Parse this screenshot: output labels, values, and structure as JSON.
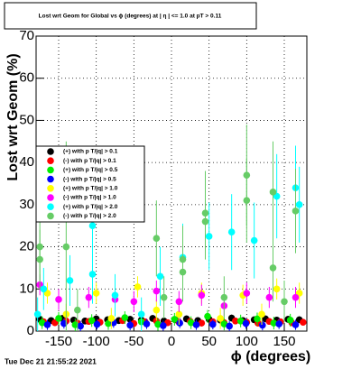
{
  "chart_data": {
    "type": "scatter",
    "title": "Lost wrt Geom for Global vs ϕ (degrees) at | η | <= 1.0 at pT > 0.11",
    "x_label": "ϕ (degrees)",
    "y_label": "Lost wrt Geom (%)",
    "timestamp": "Tue Dec 21 21:55:22 2021",
    "xlim": [
      -180,
      180
    ],
    "ylim": [
      0,
      70
    ],
    "xticks": [
      -150,
      -100,
      -50,
      0,
      50,
      100,
      150
    ],
    "yticks": [
      0,
      10,
      20,
      30,
      40,
      50,
      60,
      70
    ],
    "grid": true,
    "legend": "left",
    "series": [
      {
        "name": "(+) with p T/|q| > 0.1",
        "color": "#000000",
        "x": [
          -175,
          -160,
          -145,
          -130,
          -115,
          -100,
          -85,
          -70,
          -55,
          -40,
          -25,
          -10,
          5,
          20,
          35,
          50,
          65,
          80,
          95,
          110,
          125,
          140,
          155,
          170
        ],
        "values": [
          2.8,
          2.5,
          3.0,
          2.6,
          2.4,
          2.9,
          2.7,
          2.5,
          2.8,
          2.6,
          3.0,
          2.4,
          2.7,
          2.9,
          2.5,
          2.8,
          2.6,
          3.1,
          2.5,
          2.7,
          2.9,
          2.6,
          2.8,
          2.7
        ],
        "errors": [
          0.8,
          0.8,
          0.8,
          0.8,
          0.8,
          0.8,
          0.8,
          0.8,
          0.8,
          0.8,
          0.8,
          0.8,
          0.8,
          0.8,
          0.8,
          0.8,
          0.8,
          0.8,
          0.8,
          0.8,
          0.8,
          0.8,
          0.8,
          0.8
        ]
      },
      {
        "name": "(-) with p T/|q| > 0.1",
        "color": "#ff0000",
        "x": [
          -170,
          -155,
          -140,
          -125,
          -110,
          -95,
          -80,
          -65,
          -50,
          -35,
          -20,
          -5,
          10,
          25,
          40,
          55,
          70,
          85,
          100,
          115,
          130,
          145,
          160,
          175
        ],
        "values": [
          2.2,
          2.0,
          2.4,
          1.9,
          2.3,
          2.1,
          2.0,
          2.5,
          1.8,
          2.2,
          2.4,
          2.0,
          2.1,
          2.3,
          1.9,
          2.2,
          2.0,
          2.4,
          2.1,
          1.9,
          2.3,
          2.2,
          2.0,
          2.1
        ],
        "errors": [
          0.8,
          0.8,
          0.8,
          0.8,
          0.8,
          0.8,
          0.8,
          0.8,
          0.8,
          0.8,
          0.8,
          0.8,
          0.8,
          0.8,
          0.8,
          0.8,
          0.8,
          0.8,
          0.8,
          0.8,
          0.8,
          0.8,
          0.8,
          0.8
        ]
      },
      {
        "name": "(+) with p T/|q| > 0.5",
        "color": "#00ee00",
        "x": [
          -172,
          -150,
          -128,
          -106,
          -84,
          -62,
          -40,
          -18,
          4,
          26,
          48,
          70,
          92,
          114,
          136,
          158
        ],
        "values": [
          2.0,
          3.0,
          1.5,
          2.5,
          1.8,
          3.2,
          2.2,
          1.6,
          2.8,
          2.0,
          3.5,
          1.7,
          2.4,
          2.9,
          1.9,
          2.6
        ],
        "errors": [
          1.5,
          1.5,
          1.5,
          1.5,
          1.5,
          1.5,
          1.5,
          1.5,
          1.5,
          1.5,
          1.5,
          1.5,
          1.5,
          1.5,
          1.5,
          1.5
        ]
      },
      {
        "name": "(-) with p T/|q| > 0.5",
        "color": "#0000ff",
        "x": [
          -165,
          -143,
          -121,
          -99,
          -77,
          -55,
          -33,
          -11,
          11,
          33,
          55,
          77,
          99,
          121,
          143,
          165
        ],
        "values": [
          1.5,
          1.8,
          1.2,
          1.6,
          2.0,
          1.4,
          1.7,
          1.3,
          1.9,
          1.5,
          1.6,
          1.2,
          1.8,
          1.4,
          1.7,
          1.5
        ],
        "errors": [
          1.2,
          1.2,
          1.2,
          1.2,
          1.2,
          1.2,
          1.2,
          1.2,
          1.2,
          1.2,
          1.2,
          1.2,
          1.2,
          1.2,
          1.2,
          1.2
        ]
      },
      {
        "name": "(+) with p T/|q| > 1.0",
        "color": "#ffff00",
        "x": [
          -165,
          -140,
          -100,
          -80,
          -45,
          -20,
          10,
          40,
          65,
          95,
          120,
          140,
          170
        ],
        "values": [
          9,
          4,
          9,
          3,
          10.5,
          5,
          4,
          9,
          3,
          8.5,
          4,
          10,
          9
        ],
        "errors": [
          2.5,
          2.5,
          2.5,
          2.5,
          2.5,
          2.5,
          2.5,
          2.5,
          2.5,
          2.5,
          2.5,
          2.5,
          2.5
        ]
      },
      {
        "name": "(-) with p T/|q| > 1.0",
        "color": "#ff00ff",
        "x": [
          -175,
          -150,
          -110,
          -75,
          -50,
          -20,
          10,
          40,
          70,
          100,
          130,
          165
        ],
        "values": [
          11,
          7.5,
          8,
          7.5,
          7,
          9.5,
          7,
          8.5,
          6,
          9,
          8,
          8
        ],
        "errors": [
          2.5,
          2.5,
          2.5,
          2.5,
          2.5,
          2.5,
          2.5,
          2.5,
          2.5,
          2.5,
          2.5,
          2.5
        ]
      },
      {
        "name": "(+) with p T/|q| > 2.0",
        "color": "#00ffff",
        "x": [
          -178,
          -170,
          -135,
          -105,
          -105,
          -75,
          -40,
          -15,
          15,
          50,
          80,
          110,
          140,
          165,
          170
        ],
        "values": [
          4,
          10,
          12,
          25,
          13.5,
          8.5,
          4,
          13,
          17.5,
          22.5,
          23.5,
          21.5,
          32,
          34,
          30
        ],
        "errors": [
          4,
          5,
          6,
          10,
          7,
          5,
          4,
          7,
          8,
          8,
          9,
          9,
          10,
          10,
          9
        ]
      },
      {
        "name": "(-) with p T/|q| > 2.0",
        "color": "#66cc66",
        "x": [
          -175,
          -175,
          -140,
          -125,
          -20,
          -10,
          15,
          15,
          45,
          45,
          70,
          100,
          100,
          135,
          135,
          150,
          165
        ],
        "values": [
          20,
          17,
          20,
          5,
          22,
          8,
          14,
          17,
          28,
          26,
          8,
          37,
          31,
          33,
          15,
          7,
          28.5
        ],
        "errors": [
          8,
          7,
          25,
          5,
          9,
          5,
          7,
          8,
          10,
          9,
          5,
          12,
          10,
          12,
          8,
          5,
          10
        ]
      }
    ]
  }
}
